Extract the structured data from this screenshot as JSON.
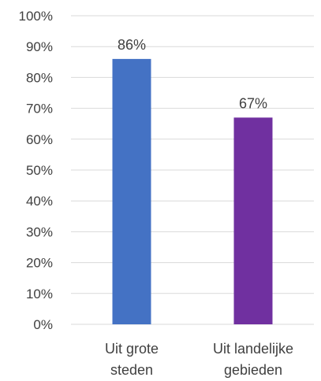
{
  "chart_data": {
    "type": "bar",
    "categories": [
      [
        "Uit grote",
        "steden"
      ],
      [
        "Uit landelijke",
        "gebieden"
      ]
    ],
    "values": [
      86,
      67
    ],
    "data_labels": [
      "86%",
      "67%"
    ],
    "colors": [
      "#4472C4",
      "#7030A0"
    ],
    "ylim": [
      0,
      100
    ],
    "yticks": [
      0,
      10,
      20,
      30,
      40,
      50,
      60,
      70,
      80,
      90,
      100
    ],
    "ytick_labels": [
      "0%",
      "10%",
      "20%",
      "30%",
      "40%",
      "50%",
      "60%",
      "70%",
      "80%",
      "90%",
      "100%"
    ],
    "grid": true,
    "legend": "none"
  }
}
